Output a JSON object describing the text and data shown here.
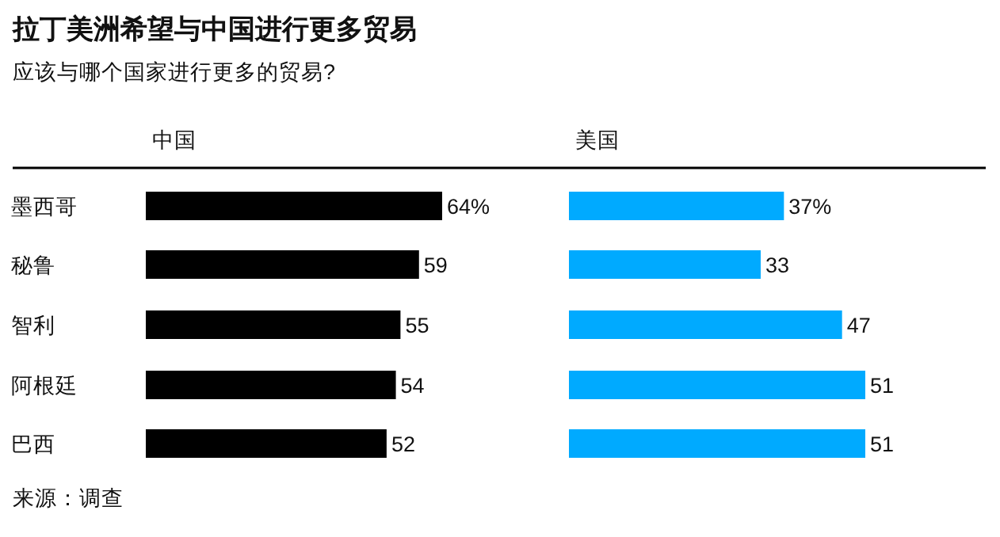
{
  "chart_data": [
    {
      "type": "bar",
      "orientation": "horizontal",
      "title": "拉丁美洲希望与中国进行更多贸易",
      "subtitle": "应该与哪个国家进行更多的贸易?",
      "xlabel": "中国",
      "categories": [
        "墨西哥",
        "秘鲁",
        "智利",
        "阿根廷",
        "巴西"
      ],
      "values": [
        64,
        59,
        55,
        54,
        52
      ],
      "value_labels": [
        "64%",
        "59",
        "55",
        "54",
        "52"
      ],
      "color": "#000000",
      "annotations": [
        "来源：调查"
      ]
    },
    {
      "type": "bar",
      "orientation": "horizontal",
      "xlabel": "美国",
      "categories": [
        null,
        null,
        null,
        null,
        null
      ],
      "values": [
        37,
        33,
        47,
        51,
        51
      ],
      "value_labels": [
        "37%",
        "33",
        "47",
        "51",
        "51"
      ],
      "color": "#00aaff"
    }
  ]
}
